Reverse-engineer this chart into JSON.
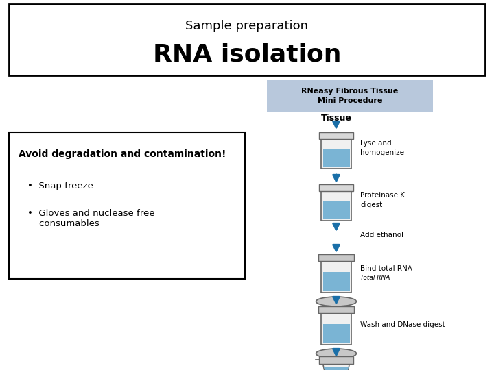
{
  "title_small": "Sample preparation",
  "title_large": "RNA isolation",
  "bg_color": "#ffffff",
  "procedure_title": "RNeasy Fibrous Tissue\nMini Procedure",
  "procedure_title_bg": "#b8c8dc",
  "left_box_title": "Avoid degradation and contamination!",
  "left_box_bullets": [
    "Snap freeze",
    "Gloves and nuclease free\nconsumables"
  ],
  "arrow_color": "#1a6fa8",
  "vessel_fill": "#7ab4d4",
  "vessel_edge": "#666666"
}
